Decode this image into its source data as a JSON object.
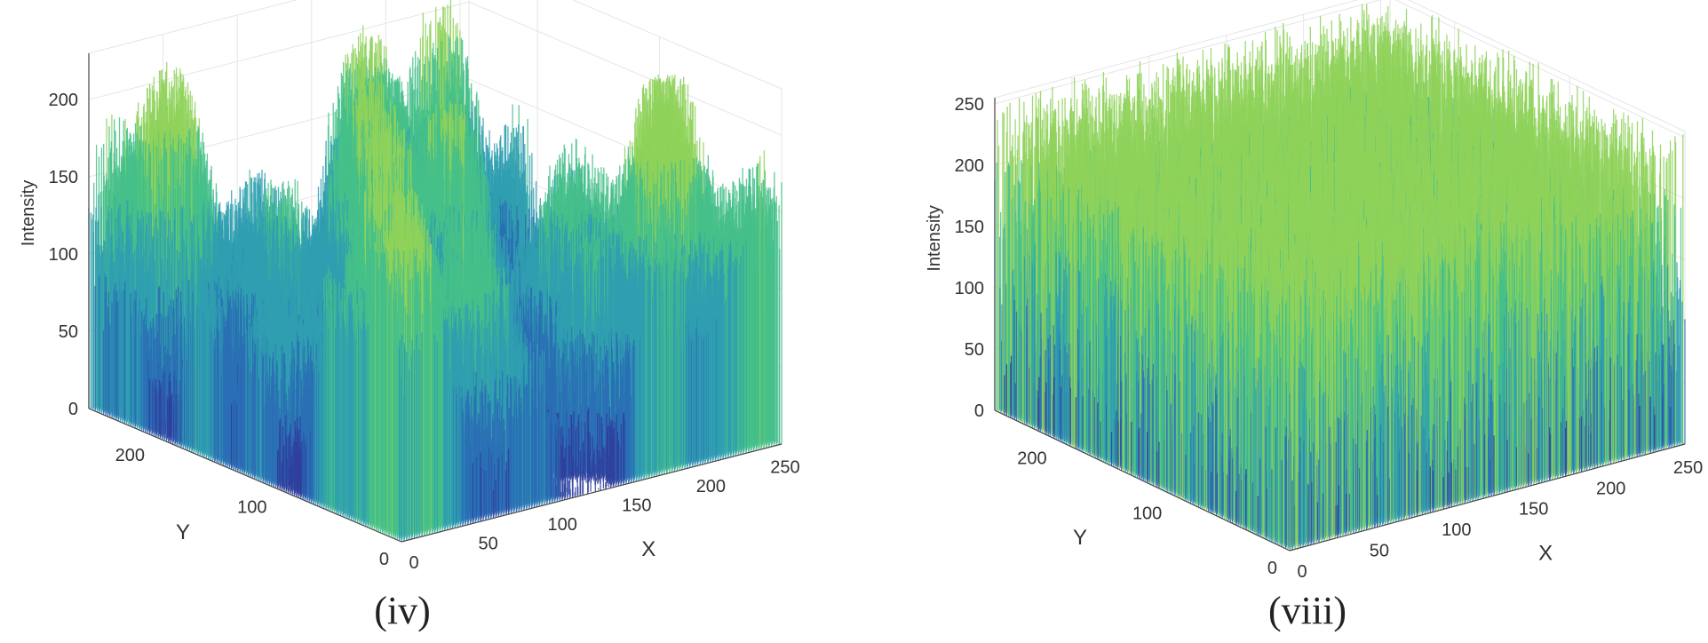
{
  "chart_data": [
    {
      "type": "surface3d",
      "caption": "(iv)",
      "xlabel": "X",
      "ylabel": "Y",
      "zlabel": "Intensity",
      "x_ticks": [
        "0",
        "50",
        "100",
        "150",
        "200",
        "250"
      ],
      "y_ticks": [
        "0",
        "100",
        "200"
      ],
      "z_ticks": [
        "0",
        "50",
        "100",
        "150",
        "200"
      ],
      "xlim": [
        0,
        256
      ],
      "ylim": [
        0,
        256
      ],
      "zlim": [
        0,
        230
      ],
      "grid": true,
      "surface": "smooth image intensity surface with peaks up to about 230 and contour projection on the base plane",
      "colormap": [
        "#2f3f9e",
        "#2a6fb5",
        "#2f9fb0",
        "#45c08a",
        "#8fd25a"
      ]
    },
    {
      "type": "surface3d",
      "caption": "(viii)",
      "xlabel": "X",
      "ylabel": "Y",
      "zlabel": "Intensity",
      "x_ticks": [
        "0",
        "50",
        "100",
        "150",
        "200",
        "250"
      ],
      "y_ticks": [
        "0",
        "100",
        "200"
      ],
      "z_ticks": [
        "0",
        "50",
        "100",
        "150",
        "200",
        "250"
      ],
      "xlim": [
        0,
        256
      ],
      "ylim": [
        0,
        256
      ],
      "zlim": [
        0,
        255
      ],
      "grid": true,
      "surface": "noise-like intensity surface spanning the full 0–255 range",
      "colormap": [
        "#2f3f9e",
        "#2a6fb5",
        "#2f9fb0",
        "#45c08a",
        "#8fd25a"
      ]
    }
  ]
}
